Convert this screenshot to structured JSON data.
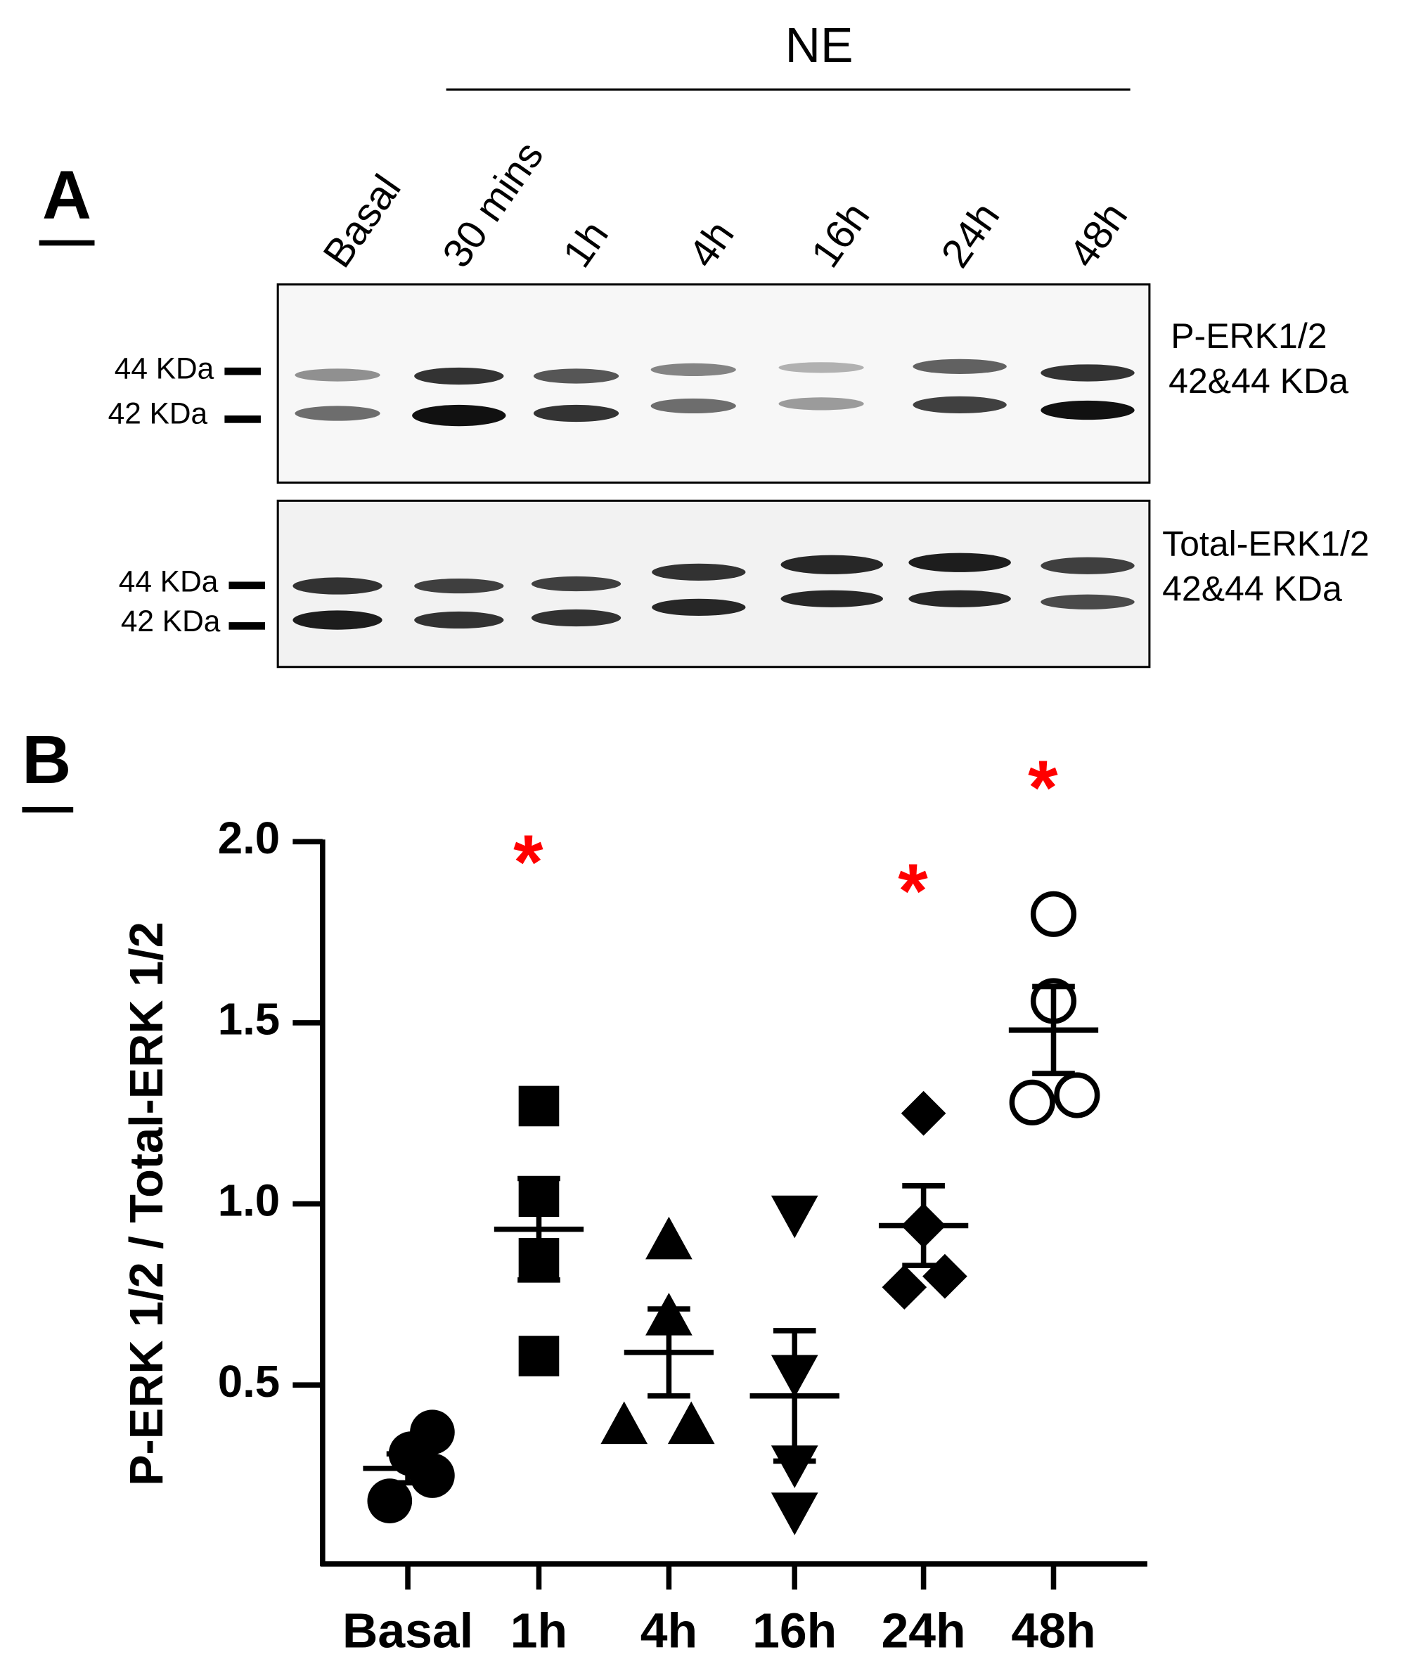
{
  "panel_a": {
    "label": "A",
    "treatment": "NE",
    "lanes": [
      "Basal",
      "30 mins",
      "1h",
      "4h",
      "16h",
      "24h",
      "48h"
    ],
    "blots": [
      {
        "markers": [
          "44 KDa",
          "42 KDa"
        ],
        "protein": "P-ERK1/2",
        "size": "42&44 KDa"
      },
      {
        "markers": [
          "44 KDa",
          "42 KDa"
        ],
        "protein": "Total-ERK1/2",
        "size": "42&44 KDa"
      }
    ]
  },
  "chart_data": {
    "type": "dot",
    "panel_label": "B",
    "y_label": "P-ERK 1/2 / Total-ERK 1/2",
    "categories": [
      "Basal",
      "1h",
      "4h",
      "16h",
      "24h",
      "48h"
    ],
    "markers": [
      "circle",
      "square",
      "triangle-up",
      "triangle-down",
      "diamond",
      "circle-open"
    ],
    "color": "#000000",
    "values": [
      [
        0.18,
        0.31,
        0.37,
        0.25
      ],
      [
        1.27,
        1.02,
        0.85,
        0.58
      ],
      [
        0.9,
        0.69,
        0.39,
        0.39
      ],
      [
        0.97,
        0.53,
        0.28,
        0.15
      ],
      [
        1.25,
        0.94,
        0.77,
        0.8
      ],
      [
        1.8,
        1.56,
        1.28,
        1.3
      ]
    ],
    "means": [
      0.27,
      0.93,
      0.59,
      0.47,
      0.94,
      1.48
    ],
    "sems": [
      0.04,
      0.14,
      0.12,
      0.18,
      0.11,
      0.12
    ],
    "ylim": [
      0,
      2
    ],
    "yticks": [
      0.5,
      {
        "value": 1,
        "label": "1.0"
      },
      1.5,
      {
        "value": 2,
        "label": "2.0"
      }
    ],
    "annotations": [
      {
        "text": "*",
        "category_index": 1
      },
      {
        "text": "*",
        "category_index": 4
      },
      {
        "text": "*",
        "category_index": 5
      }
    ],
    "annotation_color": "#ff0000"
  }
}
